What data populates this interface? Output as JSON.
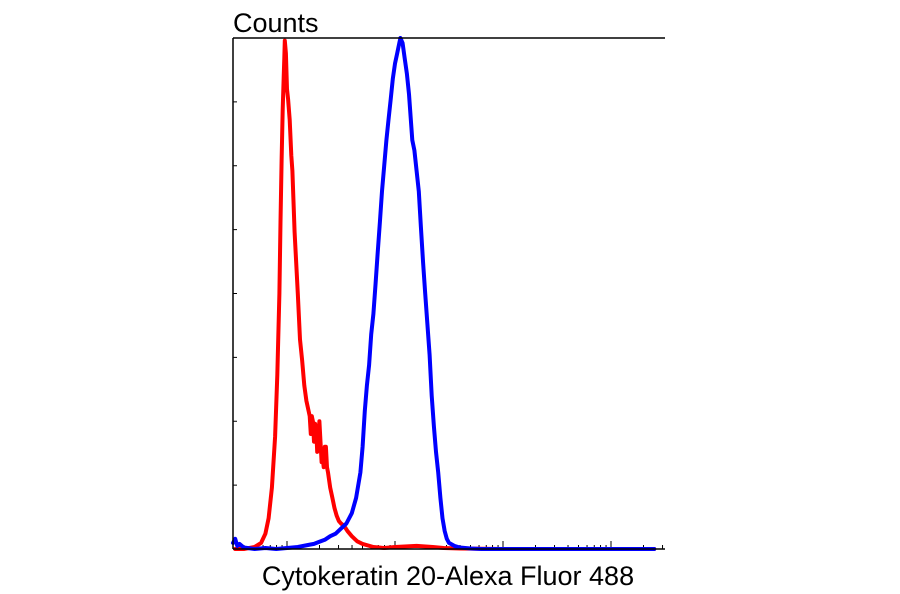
{
  "chart_data": {
    "type": "line",
    "title": "",
    "ylabel": "Counts",
    "xlabel": "Cytokeratin 20-Alexa Fluor 488",
    "x_scale": "log",
    "xlim": [
      -0.5,
      3.5
    ],
    "ylim": [
      0,
      1
    ],
    "y_ticks_labeled": false,
    "x_ticks_labeled": false,
    "grid": false,
    "legend": "none",
    "series": [
      {
        "color": "#ff0000",
        "points": [
          [
            -0.48,
            0.0
          ],
          [
            -0.4,
            0.0
          ],
          [
            -0.3,
            0.004
          ],
          [
            -0.24,
            0.012
          ],
          [
            -0.2,
            0.03
          ],
          [
            -0.17,
            0.06
          ],
          [
            -0.14,
            0.12
          ],
          [
            -0.11,
            0.22
          ],
          [
            -0.09,
            0.34
          ],
          [
            -0.07,
            0.5
          ],
          [
            -0.06,
            0.64
          ],
          [
            -0.05,
            0.76
          ],
          [
            -0.04,
            0.86
          ],
          [
            -0.03,
            0.93
          ],
          [
            -0.025,
            0.96
          ],
          [
            -0.02,
            0.995
          ],
          [
            -0.01,
            0.97
          ],
          [
            0.0,
            0.9
          ],
          [
            0.01,
            0.88
          ],
          [
            0.025,
            0.84
          ],
          [
            0.04,
            0.77
          ],
          [
            0.05,
            0.74
          ],
          [
            0.06,
            0.68
          ],
          [
            0.07,
            0.62
          ],
          [
            0.085,
            0.56
          ],
          [
            0.1,
            0.5
          ],
          [
            0.12,
            0.41
          ],
          [
            0.14,
            0.37
          ],
          [
            0.16,
            0.32
          ],
          [
            0.18,
            0.29
          ],
          [
            0.2,
            0.27
          ],
          [
            0.21,
            0.26
          ],
          [
            0.22,
            0.225
          ],
          [
            0.23,
            0.26
          ],
          [
            0.24,
            0.25
          ],
          [
            0.25,
            0.21
          ],
          [
            0.26,
            0.245
          ],
          [
            0.27,
            0.235
          ],
          [
            0.28,
            0.19
          ],
          [
            0.29,
            0.22
          ],
          [
            0.3,
            0.25
          ],
          [
            0.31,
            0.21
          ],
          [
            0.32,
            0.17
          ],
          [
            0.33,
            0.18
          ],
          [
            0.34,
            0.16
          ],
          [
            0.35,
            0.2
          ],
          [
            0.36,
            0.2
          ],
          [
            0.37,
            0.16
          ],
          [
            0.38,
            0.15
          ],
          [
            0.4,
            0.12
          ],
          [
            0.42,
            0.1
          ],
          [
            0.44,
            0.08
          ],
          [
            0.46,
            0.065
          ],
          [
            0.48,
            0.055
          ],
          [
            0.5,
            0.05
          ],
          [
            0.53,
            0.045
          ],
          [
            0.56,
            0.035
          ],
          [
            0.6,
            0.025
          ],
          [
            0.65,
            0.015
          ],
          [
            0.7,
            0.01
          ],
          [
            0.8,
            0.004
          ],
          [
            0.9,
            0.002
          ],
          [
            1.0,
            0.004
          ],
          [
            1.2,
            0.006
          ],
          [
            1.35,
            0.004
          ],
          [
            1.45,
            0.002
          ],
          [
            1.6,
            0.001
          ],
          [
            2.0,
            0.0
          ],
          [
            3.4,
            0.0
          ]
        ]
      },
      {
        "color": "#0000ff",
        "points": [
          [
            -0.5,
            0.012
          ],
          [
            -0.48,
            0.02
          ],
          [
            -0.46,
            0.006
          ],
          [
            -0.44,
            0.01
          ],
          [
            -0.4,
            0.003
          ],
          [
            -0.3,
            0.0
          ],
          [
            -0.2,
            0.002
          ],
          [
            -0.1,
            0.0
          ],
          [
            0.0,
            0.002
          ],
          [
            0.1,
            0.004
          ],
          [
            0.2,
            0.008
          ],
          [
            0.25,
            0.01
          ],
          [
            0.3,
            0.014
          ],
          [
            0.35,
            0.018
          ],
          [
            0.4,
            0.025
          ],
          [
            0.45,
            0.03
          ],
          [
            0.5,
            0.04
          ],
          [
            0.55,
            0.05
          ],
          [
            0.6,
            0.07
          ],
          [
            0.64,
            0.1
          ],
          [
            0.68,
            0.15
          ],
          [
            0.7,
            0.2
          ],
          [
            0.72,
            0.27
          ],
          [
            0.74,
            0.32
          ],
          [
            0.76,
            0.36
          ],
          [
            0.78,
            0.42
          ],
          [
            0.8,
            0.46
          ],
          [
            0.82,
            0.52
          ],
          [
            0.84,
            0.58
          ],
          [
            0.86,
            0.64
          ],
          [
            0.88,
            0.7
          ],
          [
            0.9,
            0.75
          ],
          [
            0.92,
            0.8
          ],
          [
            0.94,
            0.84
          ],
          [
            0.96,
            0.88
          ],
          [
            0.98,
            0.92
          ],
          [
            1.0,
            0.95
          ],
          [
            1.02,
            0.97
          ],
          [
            1.04,
            0.99
          ],
          [
            1.05,
            1.0
          ],
          [
            1.07,
            0.99
          ],
          [
            1.09,
            0.96
          ],
          [
            1.11,
            0.93
          ],
          [
            1.13,
            0.89
          ],
          [
            1.16,
            0.8
          ],
          [
            1.18,
            0.78
          ],
          [
            1.2,
            0.74
          ],
          [
            1.22,
            0.7
          ],
          [
            1.24,
            0.63
          ],
          [
            1.26,
            0.56
          ],
          [
            1.28,
            0.5
          ],
          [
            1.3,
            0.44
          ],
          [
            1.32,
            0.38
          ],
          [
            1.34,
            0.3
          ],
          [
            1.36,
            0.24
          ],
          [
            1.38,
            0.19
          ],
          [
            1.4,
            0.15
          ],
          [
            1.42,
            0.1
          ],
          [
            1.44,
            0.06
          ],
          [
            1.46,
            0.035
          ],
          [
            1.48,
            0.02
          ],
          [
            1.5,
            0.012
          ],
          [
            1.55,
            0.006
          ],
          [
            1.6,
            0.003
          ],
          [
            1.7,
            0.001
          ],
          [
            1.8,
            0.0
          ],
          [
            3.4,
            0.0
          ]
        ]
      }
    ]
  }
}
